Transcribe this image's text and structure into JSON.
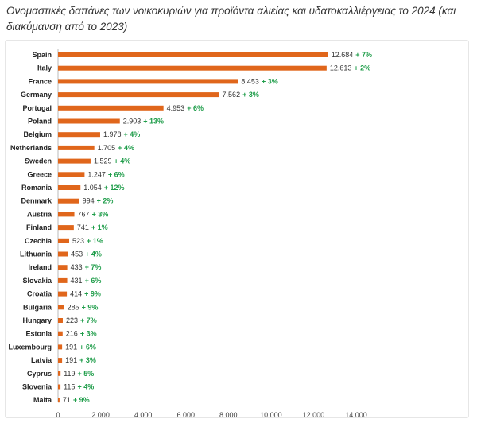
{
  "chart_data": {
    "type": "bar",
    "orientation": "horizontal",
    "title": "Ονομαστικές δαπάνες των νοικοκυριών για προϊόντα αλιείας και υδατοκαλλιέργειας το 2024 (και διακύμανση από το 2023)",
    "categories": [
      "Spain",
      "Italy",
      "France",
      "Germany",
      "Portugal",
      "Poland",
      "Belgium",
      "Netherlands",
      "Sweden",
      "Greece",
      "Romania",
      "Denmark",
      "Austria",
      "Finland",
      "Czechia",
      "Lithuania",
      "Ireland",
      "Slovakia",
      "Croatia",
      "Bulgaria",
      "Hungary",
      "Estonia",
      "Luxembourg",
      "Latvia",
      "Cyprus",
      "Slovenia",
      "Malta"
    ],
    "values": [
      12684,
      12613,
      8453,
      7562,
      4953,
      2903,
      1978,
      1705,
      1529,
      1247,
      1054,
      994,
      767,
      741,
      523,
      453,
      433,
      431,
      414,
      285,
      223,
      216,
      191,
      191,
      119,
      115,
      71
    ],
    "value_labels": [
      "12.684",
      "12.613",
      "8.453",
      "7.562",
      "4.953",
      "2.903",
      "1.978",
      "1.705",
      "1.529",
      "1.247",
      "1.054",
      "994",
      "767",
      "741",
      "523",
      "453",
      "433",
      "431",
      "414",
      "285",
      "223",
      "216",
      "191",
      "191",
      "119",
      "115",
      "71"
    ],
    "change_labels": [
      "+ 7%",
      "+ 2%",
      "+ 3%",
      "+ 3%",
      "+ 6%",
      "+ 13%",
      "+ 4%",
      "+ 4%",
      "+ 4%",
      "+ 6%",
      "+ 12%",
      "+ 2%",
      "+ 3%",
      "+ 1%",
      "+ 1%",
      "+ 4%",
      "+ 7%",
      "+ 6%",
      "+ 9%",
      "+ 9%",
      "+ 7%",
      "+ 3%",
      "+ 6%",
      "+ 3%",
      "+ 5%",
      "+ 4%",
      "+ 9%"
    ],
    "xlim": [
      0,
      14000
    ],
    "x_ticks": [
      0,
      2000,
      4000,
      6000,
      8000,
      10000,
      12000,
      14000
    ],
    "x_tick_labels": [
      "0",
      "2.000",
      "4.000",
      "6.000",
      "8.000",
      "10.000",
      "12.000",
      "14.000"
    ],
    "grid": false,
    "colors": {
      "bar": "#e0661b",
      "change": "#1f9d4a",
      "axis": "#bbbbbb"
    }
  }
}
